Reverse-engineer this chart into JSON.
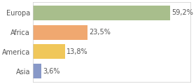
{
  "categories": [
    "Asia",
    "America",
    "Africa",
    "Europa"
  ],
  "values": [
    3.6,
    13.8,
    23.5,
    59.2
  ],
  "labels": [
    "3,6%",
    "13,8%",
    "23,5%",
    "59,2%"
  ],
  "bar_colors": [
    "#8899c8",
    "#f0c75a",
    "#f0a870",
    "#a8be8c"
  ],
  "background_color": "#ffffff",
  "xlim": [
    0,
    68
  ],
  "bar_height": 0.75,
  "label_fontsize": 7,
  "category_fontsize": 7,
  "text_color": "#555555",
  "border_color": "#cccccc"
}
